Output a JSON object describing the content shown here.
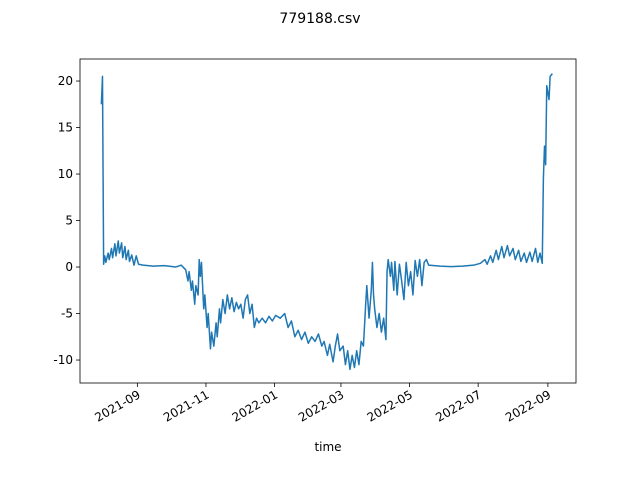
{
  "chart_data": {
    "type": "line",
    "title": "779188.csv",
    "xlabel": "time",
    "x": [
      18839,
      18840,
      18841,
      18842,
      18843,
      18845,
      18846,
      18848,
      18849,
      18851,
      18852,
      18854,
      18855,
      18857,
      18858,
      18860,
      18861,
      18863,
      18864,
      18866,
      18868,
      18870,
      18872,
      18876,
      18885,
      18895,
      18905,
      18910,
      18914,
      18916,
      18917,
      18919,
      18920,
      18922,
      18923,
      18925,
      18926,
      18927,
      18928,
      18930,
      18931,
      18933,
      18934,
      18936,
      18937,
      18939,
      18941,
      18942,
      18944,
      18945,
      18947,
      18949,
      18951,
      18953,
      18955,
      18957,
      18959,
      18961,
      18963,
      18965,
      18967,
      18969,
      18971,
      18973,
      18975,
      18977,
      18979,
      18982,
      18985,
      18988,
      18991,
      18994,
      18998,
      19002,
      19005,
      19008,
      19011,
      19014,
      19017,
      19020,
      19023,
      19026,
      19029,
      19032,
      19035,
      19037,
      19040,
      19042,
      19045,
      19047,
      19049,
      19051,
      19054,
      19056,
      19058,
      19060,
      19062,
      19064,
      19066,
      19068,
      19070,
      19072,
      19074,
      19075,
      19077,
      19079,
      19080,
      19081,
      19082,
      19084,
      19086,
      19088,
      19090,
      19092,
      19093,
      19094,
      19096,
      19097,
      19099,
      19100,
      19102,
      19104,
      19106,
      19108,
      19110,
      19112,
      19114,
      19116,
      19118,
      19120,
      19122,
      19124,
      19126,
      19128,
      19130,
      19140,
      19150,
      19160,
      19170,
      19176,
      19180,
      19182,
      19185,
      19187,
      19190,
      19192,
      19195,
      19197,
      19200,
      19202,
      19205,
      19207,
      19210,
      19212,
      19215,
      19217,
      19220,
      19222,
      19225,
      19227,
      19229,
      19231,
      19232,
      19233,
      19234,
      19235,
      19237,
      19238,
      19240
    ],
    "series": [
      {
        "color": "#1f77b4",
        "values": [
          17.5,
          20.5,
          0.3,
          1.2,
          0.5,
          1.5,
          0.8,
          2.0,
          1.0,
          2.5,
          1.2,
          2.8,
          1.5,
          2.6,
          1.0,
          2.2,
          0.8,
          1.8,
          0.6,
          1.3,
          0.2,
          1.2,
          0.3,
          0.2,
          0.1,
          0.15,
          0.0,
          0.2,
          -0.3,
          -1.5,
          -0.5,
          -2.5,
          -1.5,
          -4.0,
          -2.0,
          -3.0,
          0.8,
          -1.0,
          0.5,
          -4.5,
          -3.0,
          -6.5,
          -5.0,
          -8.8,
          -7.0,
          -8.5,
          -6.0,
          -7.5,
          -4.5,
          -6.0,
          -3.5,
          -5.0,
          -3.0,
          -4.5,
          -3.3,
          -4.8,
          -3.8,
          -4.5,
          -4.0,
          -5.5,
          -3.5,
          -3.0,
          -5.0,
          -4.0,
          -6.5,
          -5.5,
          -6.0,
          -5.5,
          -6.0,
          -5.3,
          -5.8,
          -5.2,
          -5.5,
          -5.0,
          -6.5,
          -5.8,
          -7.5,
          -6.8,
          -7.8,
          -7.0,
          -8.2,
          -7.5,
          -8.0,
          -7.2,
          -8.5,
          -8.0,
          -9.5,
          -8.3,
          -10.2,
          -8.5,
          -7.2,
          -9.0,
          -8.5,
          -10.5,
          -9.0,
          -11.0,
          -9.5,
          -10.8,
          -9.0,
          -10.5,
          -8.0,
          -8.5,
          -4.0,
          -2.0,
          -5.5,
          -2.5,
          0.5,
          -3.0,
          -4.5,
          -6.5,
          -5.0,
          -7.0,
          -5.5,
          -7.8,
          -0.5,
          0.8,
          -1.0,
          0.5,
          -2.5,
          0.6,
          -3.0,
          0.3,
          -1.5,
          -3.5,
          0.5,
          -2.0,
          -0.5,
          -3.0,
          0.7,
          -1.0,
          0.8,
          -2.0,
          0.5,
          0.8,
          0.2,
          0.1,
          0.05,
          0.1,
          0.2,
          0.4,
          0.8,
          0.3,
          1.2,
          0.5,
          1.8,
          0.8,
          2.2,
          1.0,
          2.3,
          1.2,
          2.0,
          0.8,
          1.8,
          0.6,
          1.5,
          0.5,
          1.6,
          0.6,
          2.0,
          0.5,
          1.5,
          0.4,
          9.5,
          13,
          11,
          19.5,
          18,
          20.5,
          20.8
        ]
      }
    ],
    "xlim": [
      18820,
      19261
    ],
    "xticks": [
      {
        "value": 18871,
        "label": "2021-09"
      },
      {
        "value": 18932,
        "label": "2021-11"
      },
      {
        "value": 18993,
        "label": "2022-01"
      },
      {
        "value": 19052,
        "label": "2022-03"
      },
      {
        "value": 19113,
        "label": "2022-05"
      },
      {
        "value": 19174,
        "label": "2022-07"
      },
      {
        "value": 19236,
        "label": "2022-09"
      }
    ],
    "ylim": [
      -12.47,
      22.37
    ],
    "yticks": [
      -10,
      -5,
      0,
      5,
      10,
      15,
      20
    ]
  }
}
